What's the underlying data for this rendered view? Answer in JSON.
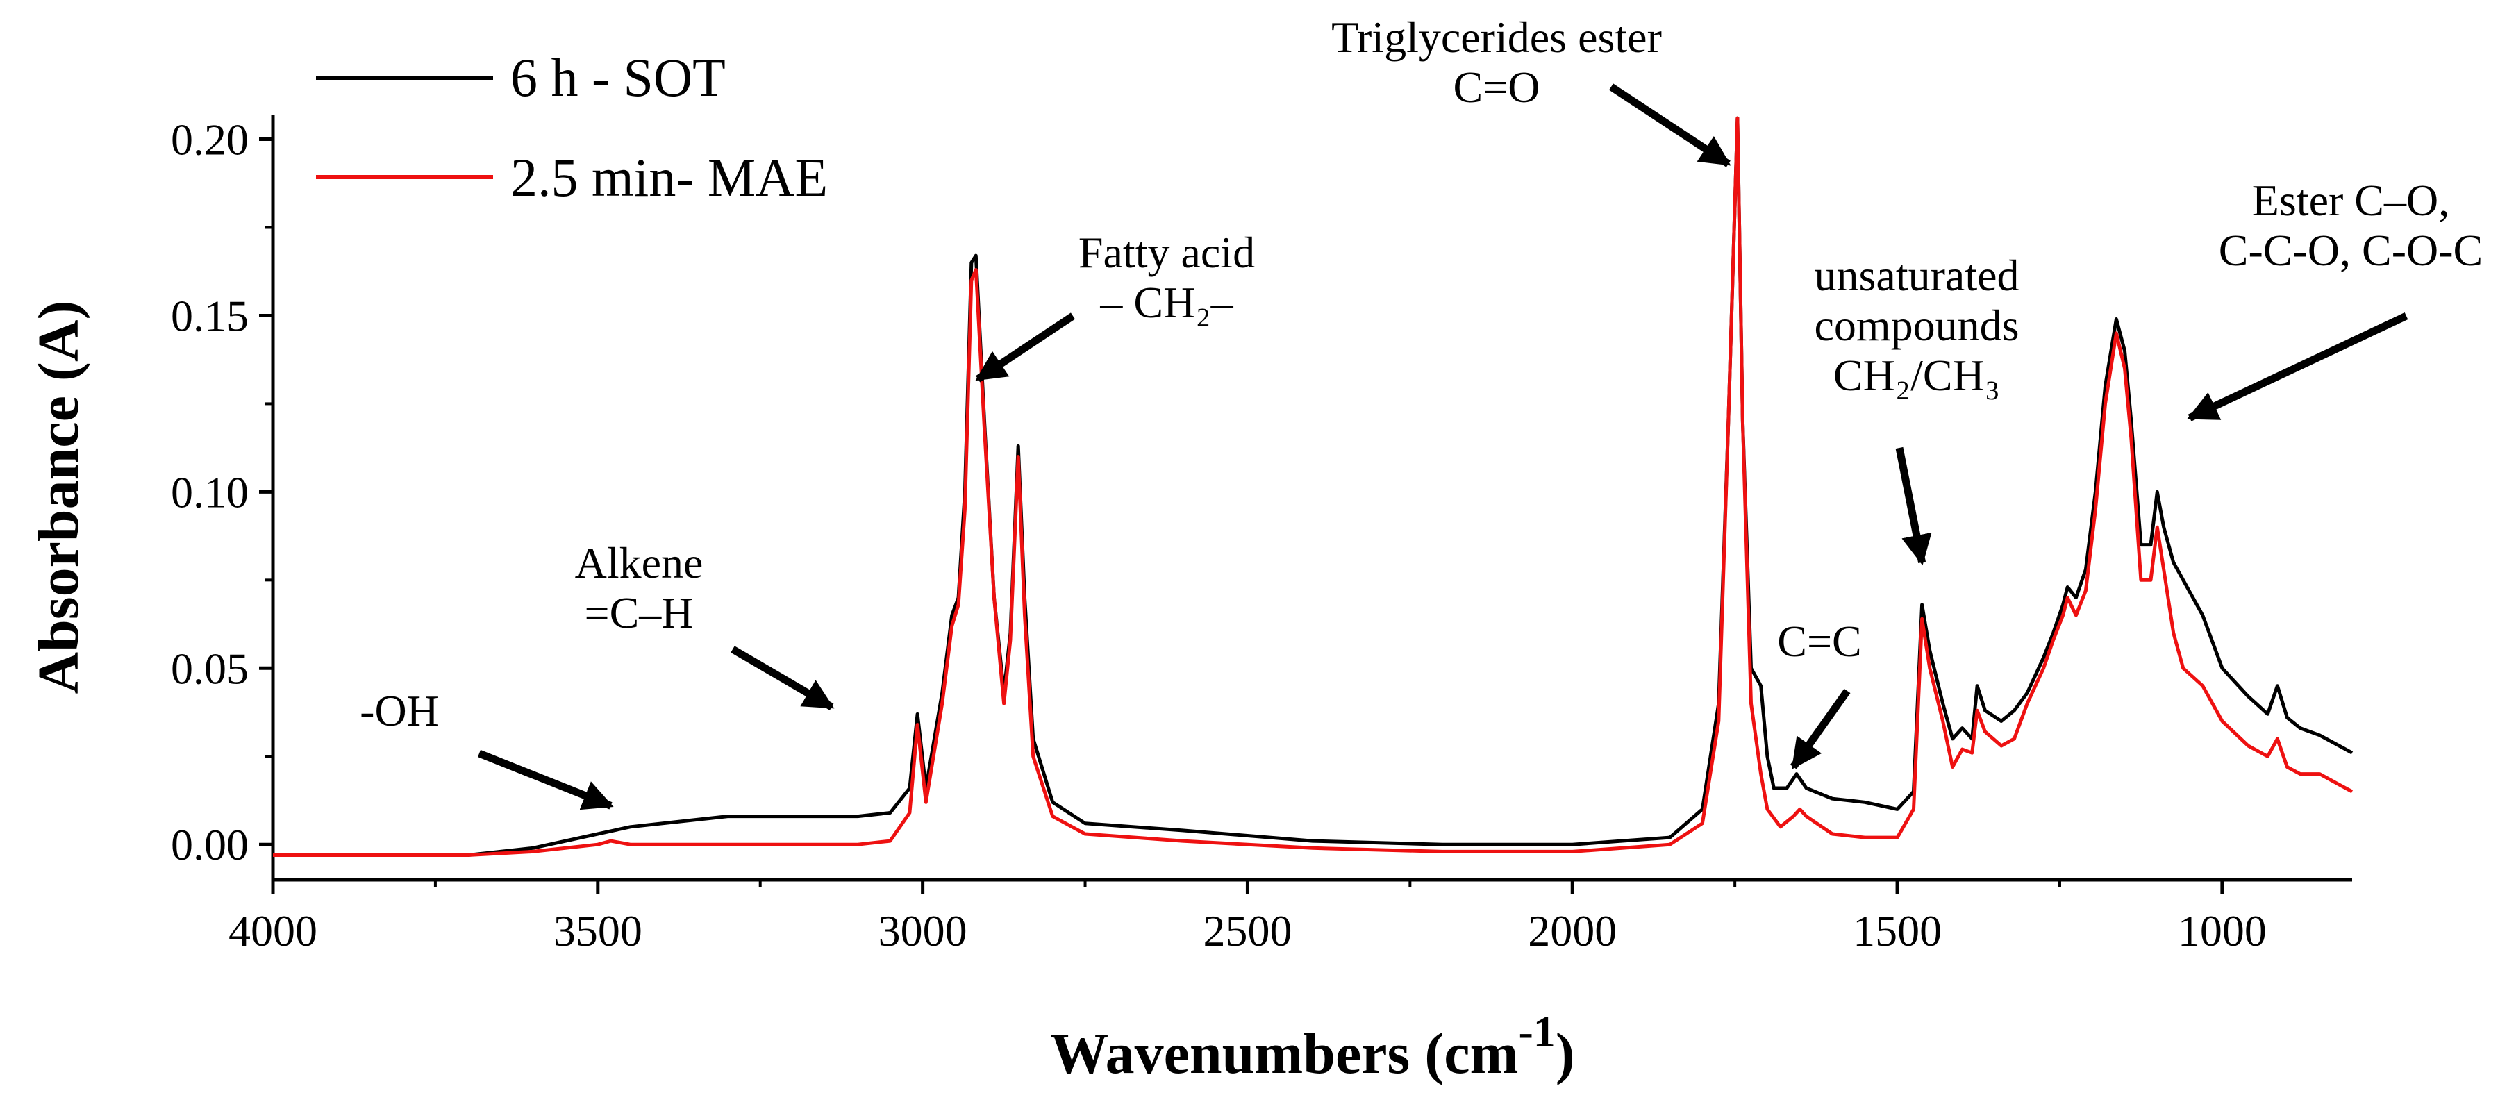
{
  "chart_data": {
    "type": "line",
    "title": "",
    "xlabel": "Wavenumbers (cm",
    "xlabel_sup": "-1",
    "xlabel_close": ")",
    "ylabel": "Absorbance (A)",
    "xlim": [
      4000,
      800
    ],
    "ylim": [
      -0.01,
      0.207
    ],
    "x_ticks": [
      4000,
      3500,
      3000,
      2500,
      2000,
      1500,
      1000
    ],
    "x_tick_labels": [
      "4000",
      "3500",
      "3000",
      "2500",
      "2000",
      "1500",
      "1000"
    ],
    "y_ticks": [
      0.0,
      0.05,
      0.1,
      0.15,
      0.2
    ],
    "y_tick_labels": [
      "0.00",
      "0.05",
      "0.10",
      "0.15",
      "0.20"
    ],
    "legend_position": "top-left",
    "series": [
      {
        "name": "6 h - SOT",
        "color": "#000000",
        "points": [
          [
            4000,
            -0.003
          ],
          [
            3700,
            -0.003
          ],
          [
            3600,
            -0.001
          ],
          [
            3500,
            0.003
          ],
          [
            3450,
            0.005
          ],
          [
            3300,
            0.008
          ],
          [
            3200,
            0.008
          ],
          [
            3100,
            0.008
          ],
          [
            3050,
            0.009
          ],
          [
            3020,
            0.016
          ],
          [
            3008,
            0.037
          ],
          [
            2995,
            0.016
          ],
          [
            2970,
            0.043
          ],
          [
            2955,
            0.065
          ],
          [
            2945,
            0.07
          ],
          [
            2935,
            0.1
          ],
          [
            2925,
            0.165
          ],
          [
            2918,
            0.167
          ],
          [
            2905,
            0.12
          ],
          [
            2890,
            0.07
          ],
          [
            2875,
            0.043
          ],
          [
            2865,
            0.06
          ],
          [
            2853,
            0.113
          ],
          [
            2843,
            0.07
          ],
          [
            2830,
            0.03
          ],
          [
            2800,
            0.012
          ],
          [
            2750,
            0.006
          ],
          [
            2600,
            0.004
          ],
          [
            2400,
            0.001
          ],
          [
            2200,
            0.0
          ],
          [
            2000,
            0.0
          ],
          [
            1850,
            0.002
          ],
          [
            1800,
            0.01
          ],
          [
            1775,
            0.04
          ],
          [
            1760,
            0.12
          ],
          [
            1746,
            0.206
          ],
          [
            1738,
            0.12
          ],
          [
            1725,
            0.05
          ],
          [
            1710,
            0.045
          ],
          [
            1700,
            0.025
          ],
          [
            1690,
            0.016
          ],
          [
            1670,
            0.016
          ],
          [
            1655,
            0.02
          ],
          [
            1640,
            0.016
          ],
          [
            1600,
            0.013
          ],
          [
            1550,
            0.012
          ],
          [
            1500,
            0.01
          ],
          [
            1475,
            0.015
          ],
          [
            1462,
            0.068
          ],
          [
            1450,
            0.055
          ],
          [
            1430,
            0.04
          ],
          [
            1415,
            0.03
          ],
          [
            1400,
            0.033
          ],
          [
            1385,
            0.03
          ],
          [
            1377,
            0.045
          ],
          [
            1365,
            0.038
          ],
          [
            1340,
            0.035
          ],
          [
            1320,
            0.038
          ],
          [
            1300,
            0.043
          ],
          [
            1275,
            0.053
          ],
          [
            1260,
            0.06
          ],
          [
            1245,
            0.068
          ],
          [
            1238,
            0.073
          ],
          [
            1225,
            0.07
          ],
          [
            1210,
            0.078
          ],
          [
            1195,
            0.1
          ],
          [
            1180,
            0.13
          ],
          [
            1163,
            0.149
          ],
          [
            1150,
            0.14
          ],
          [
            1140,
            0.12
          ],
          [
            1125,
            0.085
          ],
          [
            1110,
            0.085
          ],
          [
            1100,
            0.1
          ],
          [
            1090,
            0.09
          ],
          [
            1075,
            0.08
          ],
          [
            1060,
            0.075
          ],
          [
            1030,
            0.065
          ],
          [
            1000,
            0.05
          ],
          [
            960,
            0.042
          ],
          [
            930,
            0.037
          ],
          [
            915,
            0.045
          ],
          [
            900,
            0.036
          ],
          [
            880,
            0.033
          ],
          [
            850,
            0.031
          ],
          [
            820,
            0.028
          ],
          [
            800,
            0.026
          ]
        ]
      },
      {
        "name": "2.5 min- MAE",
        "color": "#ee1111",
        "points": [
          [
            4000,
            -0.003
          ],
          [
            3700,
            -0.003
          ],
          [
            3600,
            -0.002
          ],
          [
            3500,
            0.0
          ],
          [
            3480,
            0.001
          ],
          [
            3450,
            0.0
          ],
          [
            3300,
            0.0
          ],
          [
            3100,
            0.0
          ],
          [
            3050,
            0.001
          ],
          [
            3020,
            0.009
          ],
          [
            3008,
            0.034
          ],
          [
            2995,
            0.012
          ],
          [
            2970,
            0.04
          ],
          [
            2955,
            0.062
          ],
          [
            2945,
            0.068
          ],
          [
            2935,
            0.095
          ],
          [
            2925,
            0.16
          ],
          [
            2918,
            0.163
          ],
          [
            2905,
            0.118
          ],
          [
            2890,
            0.07
          ],
          [
            2875,
            0.04
          ],
          [
            2865,
            0.058
          ],
          [
            2853,
            0.11
          ],
          [
            2843,
            0.065
          ],
          [
            2830,
            0.025
          ],
          [
            2800,
            0.008
          ],
          [
            2750,
            0.003
          ],
          [
            2600,
            0.001
          ],
          [
            2400,
            -0.001
          ],
          [
            2200,
            -0.002
          ],
          [
            2000,
            -0.002
          ],
          [
            1850,
            0.0
          ],
          [
            1800,
            0.006
          ],
          [
            1775,
            0.035
          ],
          [
            1760,
            0.12
          ],
          [
            1746,
            0.206
          ],
          [
            1738,
            0.12
          ],
          [
            1725,
            0.04
          ],
          [
            1710,
            0.02
          ],
          [
            1700,
            0.01
          ],
          [
            1680,
            0.005
          ],
          [
            1660,
            0.008
          ],
          [
            1650,
            0.01
          ],
          [
            1640,
            0.008
          ],
          [
            1600,
            0.003
          ],
          [
            1550,
            0.002
          ],
          [
            1500,
            0.002
          ],
          [
            1475,
            0.01
          ],
          [
            1462,
            0.064
          ],
          [
            1450,
            0.05
          ],
          [
            1430,
            0.035
          ],
          [
            1415,
            0.022
          ],
          [
            1400,
            0.027
          ],
          [
            1385,
            0.026
          ],
          [
            1377,
            0.038
          ],
          [
            1365,
            0.032
          ],
          [
            1340,
            0.028
          ],
          [
            1320,
            0.03
          ],
          [
            1300,
            0.04
          ],
          [
            1275,
            0.05
          ],
          [
            1260,
            0.058
          ],
          [
            1245,
            0.065
          ],
          [
            1238,
            0.07
          ],
          [
            1225,
            0.065
          ],
          [
            1210,
            0.072
          ],
          [
            1195,
            0.095
          ],
          [
            1180,
            0.125
          ],
          [
            1163,
            0.145
          ],
          [
            1150,
            0.135
          ],
          [
            1140,
            0.115
          ],
          [
            1125,
            0.075
          ],
          [
            1110,
            0.075
          ],
          [
            1100,
            0.09
          ],
          [
            1090,
            0.078
          ],
          [
            1075,
            0.06
          ],
          [
            1060,
            0.05
          ],
          [
            1030,
            0.045
          ],
          [
            1000,
            0.035
          ],
          [
            960,
            0.028
          ],
          [
            930,
            0.025
          ],
          [
            915,
            0.03
          ],
          [
            900,
            0.022
          ],
          [
            880,
            0.02
          ],
          [
            850,
            0.02
          ],
          [
            820,
            0.017
          ],
          [
            800,
            0.015
          ]
        ]
      }
    ],
    "annotations": [
      {
        "id": "oh",
        "lines": [
          "-OH"
        ],
        "arrow_to": [
          3480,
          0.011
        ]
      },
      {
        "id": "alkene",
        "lines": [
          "Alkene",
          "=C–H"
        ],
        "arrow_to": [
          3140,
          0.039
        ]
      },
      {
        "id": "fatty",
        "lines": [
          "Fatty acid",
          "– CH₂–"
        ],
        "arrow_to": [
          2915,
          0.132
        ]
      },
      {
        "id": "trig",
        "lines": [
          "Triglycerides ester",
          "C=O"
        ],
        "arrow_to": [
          1760,
          0.193
        ]
      },
      {
        "id": "cc",
        "lines": [
          "C=C"
        ],
        "arrow_to": [
          1660,
          0.022
        ]
      },
      {
        "id": "unsat",
        "lines": [
          "unsaturated",
          "compounds",
          "CH₂/CH₃"
        ],
        "arrow_to": [
          1462,
          0.08
        ]
      },
      {
        "id": "ester",
        "lines": [
          "Ester C–O,",
          "C-C-O, C-O-C"
        ],
        "arrow_to": [
          1050,
          0.121
        ]
      }
    ]
  }
}
